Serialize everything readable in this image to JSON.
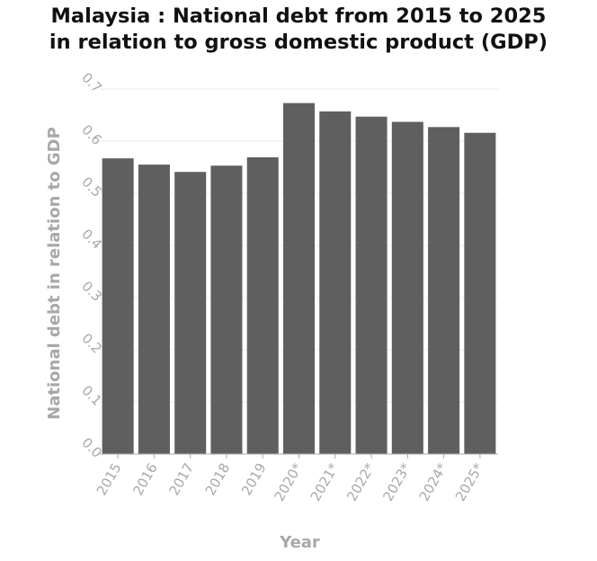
{
  "chart_data": {
    "type": "bar",
    "title_line1": "Malaysia : National debt from 2015 to 2025",
    "title_line2": "in relation to gross domestic product (GDP)",
    "xlabel": "Year",
    "ylabel": "National debt in relation to GDP",
    "categories": [
      "2015",
      "2016",
      "2017",
      "2018",
      "2019",
      "2020*",
      "2021*",
      "2022*",
      "2023*",
      "2024*",
      "2025*"
    ],
    "values": [
      0.567,
      0.555,
      0.541,
      0.553,
      0.569,
      0.673,
      0.657,
      0.647,
      0.637,
      0.627,
      0.616
    ],
    "yticks": [
      "0.0",
      "0.1",
      "0.2",
      "0.3",
      "0.4",
      "0.5",
      "0.6",
      "0.7"
    ],
    "ylim": [
      0,
      0.7
    ],
    "grid": true,
    "bar_color": "#5f5f5f",
    "grid_color": "#ebebeb",
    "label_color": "#a8a8a8"
  }
}
